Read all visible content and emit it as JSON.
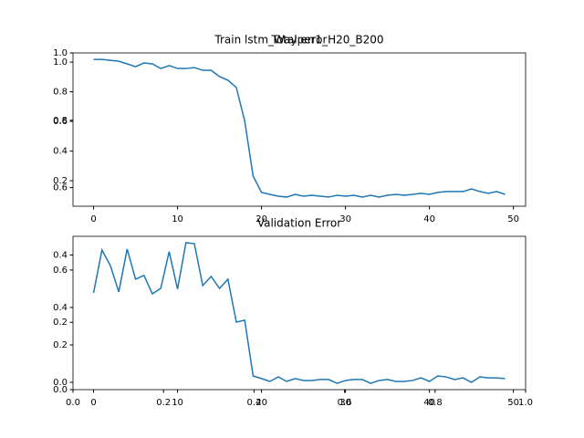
{
  "chart_data": [
    {
      "type": "axes",
      "title": "Train lstm_Wayper1_H20_B200",
      "xlim": [
        0,
        1
      ],
      "ylim": [
        0,
        1
      ],
      "xticks": [
        {
          "value": 0,
          "label": "0.0"
        },
        0.2,
        0.4,
        0.6,
        0.8,
        {
          "value": 1,
          "label": "1.0"
        }
      ],
      "yticks": [
        {
          "value": 0,
          "label": "0.0"
        },
        0.2,
        0.4,
        0.6,
        0.8,
        {
          "value": 1,
          "label": "1.0"
        }
      ]
    },
    {
      "type": "line",
      "title": "Total error",
      "x": [
        0,
        1,
        2,
        3,
        4,
        5,
        6,
        7,
        8,
        9,
        10,
        11,
        12,
        13,
        14,
        15,
        16,
        17,
        18,
        19,
        20,
        21,
        22,
        23,
        24,
        25,
        26,
        27,
        28,
        29,
        30,
        31,
        32,
        33,
        34,
        35,
        36,
        37,
        38,
        39,
        40,
        41,
        42,
        43,
        44,
        45,
        46,
        47,
        48,
        49
      ],
      "series": [
        {
          "color": "#1f77b4",
          "values": [
            1.018,
            1.018,
            1.012,
            1.006,
            0.988,
            0.969,
            0.994,
            0.988,
            0.957,
            0.976,
            0.957,
            0.957,
            0.963,
            0.945,
            0.945,
            0.902,
            0.878,
            0.829,
            0.603,
            0.231,
            0.121,
            0.108,
            0.096,
            0.09,
            0.108,
            0.096,
            0.102,
            0.096,
            0.09,
            0.102,
            0.096,
            0.102,
            0.09,
            0.102,
            0.09,
            0.102,
            0.108,
            0.102,
            0.108,
            0.115,
            0.108,
            0.121,
            0.127,
            0.127,
            0.127,
            0.145,
            0.127,
            0.115,
            0.127,
            0.108
          ]
        }
      ],
      "xlim": [
        -2.45,
        51.45
      ],
      "ylim": [
        0.028,
        1.062
      ],
      "xticks": [
        0,
        10,
        20,
        30,
        40,
        50
      ],
      "yticks": [
        0.2,
        0.4,
        0.6,
        0.8,
        {
          "value": 1,
          "label": "1.0"
        }
      ]
    },
    {
      "type": "line",
      "title": "Validation Error",
      "x": [
        0,
        1,
        2,
        3,
        4,
        5,
        6,
        7,
        8,
        9,
        10,
        11,
        12,
        13,
        14,
        15,
        16,
        17,
        18,
        19,
        20,
        21,
        22,
        23,
        24,
        25,
        26,
        27,
        28,
        29,
        30,
        31,
        32,
        33,
        34,
        35,
        36,
        37,
        38,
        39,
        40,
        41,
        42,
        43,
        44,
        45,
        46,
        47,
        48,
        49
      ],
      "series": [
        {
          "color": "#1f77b4",
          "values": [
            0.478,
            0.707,
            0.624,
            0.483,
            0.712,
            0.551,
            0.571,
            0.473,
            0.502,
            0.698,
            0.498,
            0.746,
            0.741,
            0.517,
            0.566,
            0.502,
            0.551,
            0.322,
            0.332,
            0.034,
            0.02,
            0.005,
            0.029,
            0.005,
            0.02,
            0.01,
            0.01,
            0.015,
            0.015,
            -0.005,
            0.01,
            0.015,
            0.015,
            -0.005,
            0.01,
            0.015,
            0.005,
            0.005,
            0.01,
            0.024,
            0.005,
            0.034,
            0.029,
            0.015,
            0.024,
            0.0,
            0.029,
            0.024,
            0.024,
            0.02
          ]
        }
      ],
      "xlim": [
        -2.45,
        51.45
      ],
      "ylim": [
        -0.039,
        0.78
      ],
      "xticks": [
        0,
        10,
        20,
        30,
        40,
        50
      ],
      "yticks": [
        {
          "value": 0,
          "label": "0.0"
        },
        0.2,
        0.4,
        0.6
      ]
    }
  ]
}
